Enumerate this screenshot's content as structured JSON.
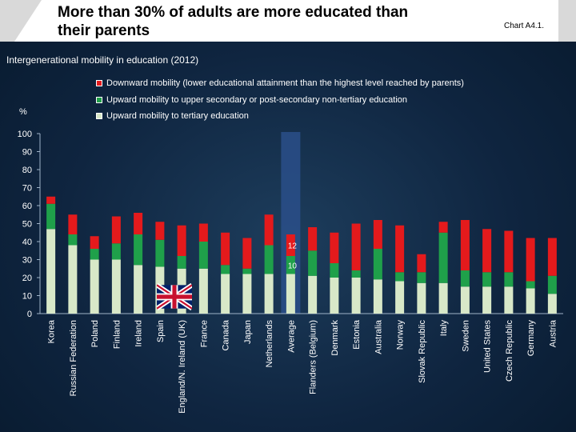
{
  "header": {
    "title_line1": "More than 30% of adults are more educated than",
    "title_line2": "their parents",
    "chart_tag": "Chart A4.1."
  },
  "colors": {
    "downward": "#e41a1c",
    "upper_secondary": "#1fa04a",
    "tertiary": "#d8e8c8",
    "average_highlight": "#2a4f8a"
  },
  "chart_data": {
    "type": "bar",
    "stacked": true,
    "title": "Intergenerational mobility in education (2012)",
    "ylabel": "%",
    "ylim": [
      0,
      100
    ],
    "yticks": [
      0,
      10,
      20,
      30,
      40,
      50,
      60,
      70,
      80,
      90,
      100
    ],
    "categories": [
      "Korea",
      "Russian Federation",
      "Poland",
      "Finland",
      "Ireland",
      "Spain",
      "England/N. Ireland (UK)",
      "France",
      "Canada",
      "Japan",
      "Netherlands",
      "Average",
      "Flanders (Belgium)",
      "Denmark",
      "Estonia",
      "Australia",
      "Norway",
      "Slovak Republic",
      "Italy",
      "Sweden",
      "United States",
      "Czech Republic",
      "Germany",
      "Austria"
    ],
    "series": [
      {
        "name": "Upward mobility to tertiary education",
        "values": [
          47,
          38,
          30,
          30,
          27,
          26,
          25,
          25,
          22,
          22,
          22,
          22,
          21,
          20,
          20,
          19,
          18,
          17,
          17,
          15,
          15,
          15,
          14,
          11
        ]
      },
      {
        "name": "Upward mobility to upper secondary or post-secondary non-tertiary education",
        "values": [
          14,
          6,
          6,
          9,
          17,
          15,
          7,
          15,
          5,
          3,
          16,
          10,
          14,
          8,
          4,
          17,
          5,
          6,
          28,
          9,
          8,
          8,
          4,
          10
        ]
      },
      {
        "name": "Downward mobility (lower educational attainment than the highest level reached by parents)",
        "values": [
          4,
          11,
          7,
          15,
          12,
          10,
          17,
          10,
          18,
          17,
          17,
          12,
          13,
          17,
          26,
          16,
          26,
          10,
          6,
          28,
          24,
          23,
          24,
          21
        ]
      }
    ],
    "annotations": [
      {
        "category": "Average",
        "series": "Downward mobility (lower educational attainment than the highest level reached by parents)",
        "text": "12"
      },
      {
        "category": "Average",
        "series": "Upward mobility to upper secondary or post-secondary non-tertiary education",
        "text": "10"
      }
    ],
    "highlight_category": "Average",
    "flag_category": "England/N. Ireland (UK)"
  }
}
